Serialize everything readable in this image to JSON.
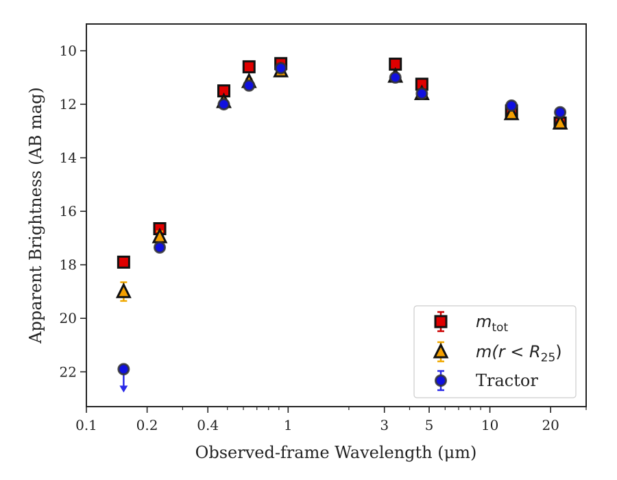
{
  "chart_data": {
    "type": "scatter",
    "xscale": "log",
    "xlabel": "Observed-frame Wavelength (μm)",
    "ylabel": "Apparent Brightness (AB mag)",
    "xlim": [
      0.1,
      30
    ],
    "ylim": [
      23.3,
      9.0
    ],
    "y_inverted": true,
    "grid": false,
    "legend_position": "lower-right",
    "x_ticks": [
      {
        "value": 0.1,
        "label": "0.1"
      },
      {
        "value": 0.2,
        "label": "0.2"
      },
      {
        "value": 0.4,
        "label": "0.4"
      },
      {
        "value": 1,
        "label": "1"
      },
      {
        "value": 3,
        "label": "3"
      },
      {
        "value": 5,
        "label": "5"
      },
      {
        "value": 10,
        "label": "10"
      },
      {
        "value": 20,
        "label": "20"
      }
    ],
    "y_ticks": [
      {
        "value": 10,
        "label": "10"
      },
      {
        "value": 12,
        "label": "12"
      },
      {
        "value": 14,
        "label": "14"
      },
      {
        "value": 16,
        "label": "16"
      },
      {
        "value": 18,
        "label": "18"
      },
      {
        "value": 20,
        "label": "20"
      },
      {
        "value": 22,
        "label": "22"
      }
    ],
    "series": [
      {
        "name": "m_tot",
        "legend_math": "m",
        "legend_sub": "tot",
        "marker": "square",
        "color": "#e00000",
        "errcolor": "#cc0000",
        "x": [
          0.153,
          0.231,
          0.48,
          0.64,
          0.92,
          3.4,
          4.6,
          12.8,
          22.3
        ],
        "y": [
          17.9,
          16.65,
          11.5,
          10.6,
          10.48,
          10.5,
          11.25,
          12.25,
          12.7
        ],
        "err": [
          0.1,
          0.1,
          0.1,
          0.1,
          0.1,
          0.1,
          0.1,
          0.1,
          0.1
        ]
      },
      {
        "name": "m(r < R25)",
        "legend_math": "m(r < R",
        "legend_sub": "25",
        "legend_tail": ")",
        "marker": "triangle",
        "color": "#f5a000",
        "errcolor": "#f0a800",
        "x": [
          0.153,
          0.231,
          0.48,
          0.64,
          0.92,
          3.4,
          4.6,
          12.8,
          22.3
        ],
        "y": [
          19.0,
          16.95,
          11.9,
          11.15,
          10.75,
          10.95,
          11.6,
          12.35,
          12.7
        ],
        "err": [
          0.35,
          0.2,
          0.1,
          0.1,
          0.1,
          0.1,
          0.1,
          0.1,
          0.1
        ]
      },
      {
        "name": "Tractor",
        "legend_label": "Tractor",
        "marker": "circle",
        "color": "#1010e0",
        "errcolor": "#2a2ae8",
        "x": [
          0.153,
          0.231,
          0.48,
          0.64,
          0.92,
          3.4,
          4.6,
          12.8,
          22.3
        ],
        "y": [
          21.9,
          17.35,
          12.0,
          11.3,
          10.65,
          11.0,
          11.6,
          12.05,
          12.3
        ],
        "err": [
          0.1,
          0.1,
          0.1,
          0.1,
          0.1,
          0.1,
          0.1,
          0.1,
          0.1
        ],
        "upper_limit_index": 0
      }
    ]
  }
}
